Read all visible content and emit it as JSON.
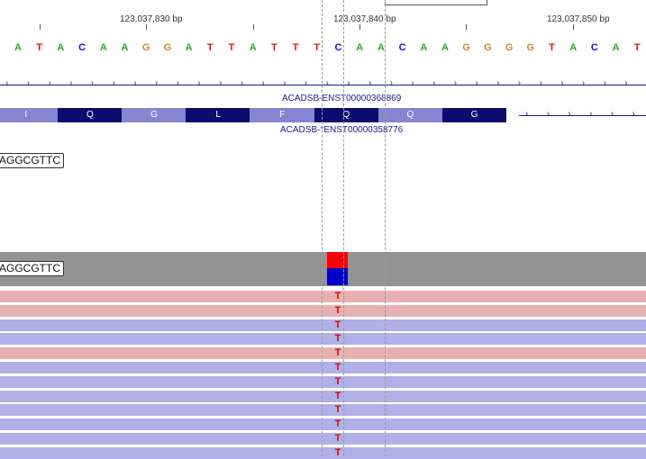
{
  "ruler": {
    "labels": [
      "123,037,830 bp",
      "123,037,840 bp",
      "123,037,850 bp"
    ]
  },
  "sequence": {
    "bases": [
      "A",
      "T",
      "A",
      "C",
      "A",
      "A",
      "G",
      "G",
      "A",
      "T",
      "T",
      "A",
      "T",
      "T",
      "T",
      "C",
      "A",
      "A",
      "C",
      "A",
      "A",
      "G",
      "G",
      "G",
      "G",
      "T",
      "A",
      "C",
      "A",
      "T"
    ],
    "colors": {
      "A": "#22aa22",
      "T": "#dd1111",
      "C": "#1111cc",
      "G": "#cc8822"
    }
  },
  "transcripts": {
    "top_label": "ACADSB-ENST00000368869",
    "bottom_label": "ACADSB-*ENST00000358776",
    "exons": [
      {
        "aa": "I",
        "shade": "light"
      },
      {
        "aa": "Q",
        "shade": "dark"
      },
      {
        "aa": "G",
        "shade": "light"
      },
      {
        "aa": "L",
        "shade": "dark"
      },
      {
        "aa": "F",
        "shade": "light"
      },
      {
        "aa": "Q",
        "shade": "dark"
      },
      {
        "aa": "Q",
        "shade": "light"
      },
      {
        "aa": "G",
        "shade": "dark"
      }
    ],
    "colors": {
      "light": "#8585d2",
      "dark": "#0c0c6e"
    }
  },
  "seq_boxes": [
    "AGGCGTTC",
    "AGGCGTTC"
  ],
  "coverage": {
    "band_color": "#939393",
    "mismatch_colors": [
      "#ff0000",
      "#0000cc"
    ]
  },
  "reads": {
    "mismatch_base": "T",
    "strands": [
      "pos",
      "pos",
      "neg",
      "neg",
      "pos",
      "neg",
      "neg",
      "neg",
      "neg",
      "neg",
      "neg",
      "neg"
    ],
    "colors": {
      "pos": "#e8b1b1",
      "neg": "#b0b1e8"
    }
  }
}
